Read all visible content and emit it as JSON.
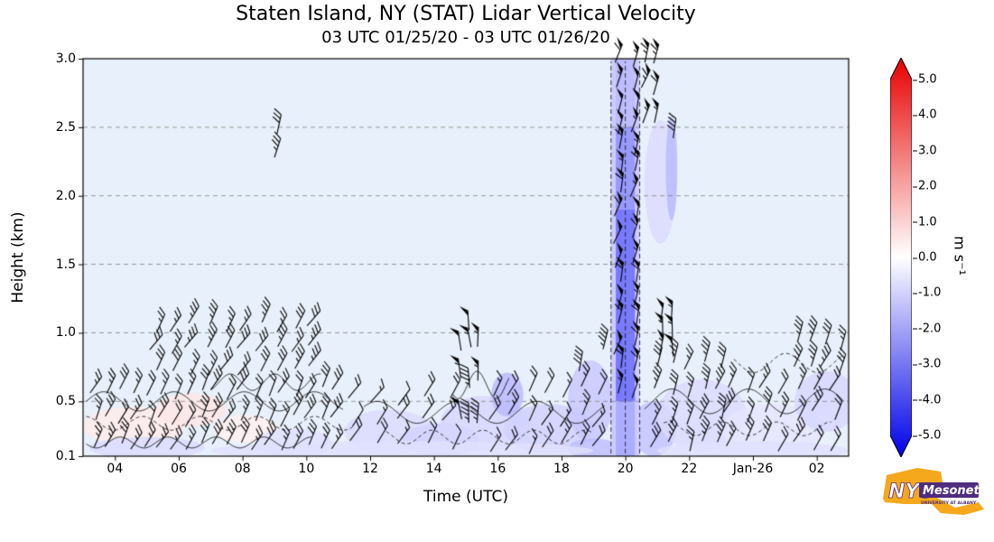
{
  "header": {
    "title": "Staten Island, NY (STAT) Lidar Vertical Velocity",
    "subtitle": "03 UTC 01/25/20 - 03 UTC 01/26/20"
  },
  "axes": {
    "xlabel": "Time (UTC)",
    "ylabel": "Height (km)"
  },
  "colorbar": {
    "label": "m s⁻¹",
    "tick_labels": [
      "5.0",
      "4.0",
      "3.0",
      "2.0",
      "1.0",
      "0.0",
      "-1.0",
      "-2.0",
      "-3.0",
      "-4.0",
      "-5.0"
    ],
    "top_arrow_color": "#e80000",
    "bottom_arrow_color": "#0000e8"
  },
  "logo": {
    "org": "NYS",
    "name": "Mesonet",
    "tagline": "UNIVERSITY AT ALBANY",
    "state_color": "#F5A81C",
    "accent_color": "#4F2D7F"
  },
  "chart_data": {
    "type": "heatmap",
    "title": "Staten Island, NY (STAT) Lidar Vertical Velocity",
    "subtitle": "03 UTC 01/25/20 - 03 UTC 01/26/20",
    "xlabel": "Time (UTC)",
    "ylabel": "Height (km)",
    "units": "m s-1",
    "xlim": [
      3,
      27
    ],
    "ylim": [
      0.1,
      3.0
    ],
    "x_tick_hours": [
      4,
      6,
      8,
      10,
      12,
      14,
      16,
      18,
      20,
      22,
      24,
      26
    ],
    "x_tick_labels": [
      "04",
      "06",
      "08",
      "10",
      "12",
      "14",
      "16",
      "18",
      "20",
      "22",
      "Jan-26",
      "02"
    ],
    "y_tick_values": [
      0.1,
      0.5,
      1.0,
      1.5,
      2.0,
      2.5,
      3.0
    ],
    "y_tick_labels": [
      "0.1",
      "0.5",
      "1.0",
      "1.5",
      "2.0",
      "2.5",
      "3.0"
    ],
    "grid_heights": [
      0.5,
      1.0,
      1.5,
      2.0,
      2.5
    ],
    "grid_on": true,
    "legend": "colorbar right, -5.0 to 5.0 m s-1, blue negative (downward), red positive (upward)",
    "background_value": -0.2,
    "background_color": "#e8f1fb",
    "colorbar": {
      "vmin": -5.0,
      "vmax": 5.0,
      "ticks": [
        5,
        4,
        3,
        2,
        1,
        0,
        -1,
        -2,
        -3,
        -4,
        -5
      ]
    },
    "patches": [
      {
        "t": 4.6,
        "h": 0.32,
        "rt": 1.6,
        "rh": 0.14,
        "v": 0.4
      },
      {
        "t": 6.4,
        "h": 0.44,
        "rt": 1.1,
        "rh": 0.12,
        "v": 0.5
      },
      {
        "t": 8.1,
        "h": 0.3,
        "rt": 1.0,
        "rh": 0.1,
        "v": 0.3
      },
      {
        "t": 5.0,
        "h": 0.16,
        "rt": 1.8,
        "rh": 0.08,
        "v": -0.7
      },
      {
        "t": 9.6,
        "h": 0.2,
        "rt": 1.2,
        "rh": 0.1,
        "v": -0.6
      },
      {
        "t": 12.6,
        "h": 0.28,
        "rt": 1.4,
        "rh": 0.16,
        "v": -0.7
      },
      {
        "t": 14.2,
        "h": 0.22,
        "rt": 1.2,
        "rh": 0.12,
        "v": -0.9
      },
      {
        "t": 15.6,
        "h": 0.34,
        "rt": 1.4,
        "rh": 0.2,
        "v": -0.8
      },
      {
        "t": 16.3,
        "h": 0.55,
        "rt": 0.5,
        "rh": 0.16,
        "v": -1.4
      },
      {
        "t": 17.6,
        "h": 0.3,
        "rt": 1.4,
        "rh": 0.18,
        "v": -0.9
      },
      {
        "t": 18.9,
        "h": 0.5,
        "rt": 0.7,
        "rh": 0.3,
        "v": -1.1
      },
      {
        "t": 19.0,
        "h": 0.15,
        "rt": 0.8,
        "rh": 0.08,
        "v": -1.3
      },
      {
        "t": 20.9,
        "h": 0.3,
        "rt": 0.7,
        "rh": 0.2,
        "v": -1.2
      },
      {
        "t": 21.1,
        "h": 2.1,
        "rt": 0.5,
        "rh": 0.45,
        "v": -0.7
      },
      {
        "t": 21.45,
        "h": 2.2,
        "rt": 0.18,
        "rh": 0.38,
        "v": -1.4
      },
      {
        "t": 22.4,
        "h": 0.4,
        "rt": 1.4,
        "rh": 0.26,
        "v": -0.7
      },
      {
        "t": 24.6,
        "h": 0.3,
        "rt": 1.6,
        "rh": 0.18,
        "v": -0.5
      },
      {
        "t": 26.3,
        "h": 0.5,
        "rt": 1.0,
        "rh": 0.22,
        "v": -0.8
      },
      {
        "t": 13.0,
        "h": 0.14,
        "rt": 6.0,
        "rh": 0.07,
        "v": -0.6
      },
      {
        "t": 24.0,
        "h": 0.14,
        "rt": 3.0,
        "rh": 0.07,
        "v": -0.6
      }
    ],
    "downdraft_column": {
      "t0": 19.55,
      "t1": 20.45,
      "halo_v": -1.0,
      "core_t0": 19.7,
      "core_t1": 20.3,
      "segments": [
        {
          "h0": 0.1,
          "h1": 0.5,
          "v": -1.6
        },
        {
          "h0": 0.5,
          "h1": 1.9,
          "v": -2.6
        },
        {
          "h0": 1.9,
          "h1": 2.5,
          "v": -2.0
        },
        {
          "h0": 2.5,
          "h1": 3.0,
          "v": -1.3
        }
      ]
    },
    "contours": [
      {
        "t0": 3.1,
        "t1": 11.2,
        "h": 0.5,
        "amp": 0.07,
        "per": 2.2,
        "dash": false
      },
      {
        "t0": 3.1,
        "t1": 11.5,
        "h": 0.34,
        "amp": 0.05,
        "per": 1.8,
        "dash": true
      },
      {
        "t0": 3.1,
        "t1": 10.2,
        "h": 0.2,
        "amp": 0.04,
        "per": 1.5,
        "dash": false
      },
      {
        "t0": 7.0,
        "t1": 10.5,
        "h": 0.64,
        "amp": 0.06,
        "per": 1.4,
        "dash": false
      },
      {
        "t0": 11.8,
        "t1": 19.4,
        "h": 0.42,
        "amp": 0.08,
        "per": 2.5,
        "dash": false
      },
      {
        "t0": 12.5,
        "t1": 19.0,
        "h": 0.24,
        "amp": 0.05,
        "per": 1.6,
        "dash": true
      },
      {
        "t0": 14.6,
        "t1": 16.4,
        "h": 0.62,
        "amp": 0.1,
        "per": 1.2,
        "dash": false
      },
      {
        "t0": 20.6,
        "t1": 26.9,
        "h": 0.5,
        "amp": 0.09,
        "per": 2.4,
        "dash": false
      },
      {
        "t0": 21.2,
        "t1": 26.5,
        "h": 0.3,
        "amp": 0.05,
        "per": 1.7,
        "dash": true
      },
      {
        "t0": 23.4,
        "t1": 26.9,
        "h": 0.78,
        "amp": 0.07,
        "per": 2.0,
        "dash": true
      }
    ],
    "barb_clusters": [
      {
        "t0": 3.3,
        "t1": 11.0,
        "dt": 0.42,
        "h0": 0.16,
        "h1": 0.56,
        "dh": 0.2,
        "dir_deg": 62,
        "spd_kt": 25
      },
      {
        "t0": 5.2,
        "t1": 10.6,
        "dt": 0.55,
        "h0": 0.72,
        "h1": 1.04,
        "dh": 0.16,
        "dir_deg": 58,
        "spd_kt": 30
      },
      {
        "t0": 11.4,
        "t1": 14.4,
        "dt": 0.75,
        "h0": 0.18,
        "h1": 0.5,
        "dh": 0.16,
        "dir_deg": 55,
        "spd_kt": 15
      },
      {
        "t0": 14.8,
        "t1": 15.4,
        "dt": 0.3,
        "h0": 0.38,
        "h1": 0.86,
        "dh": 0.24,
        "dir_deg": 92,
        "spd_kt": 50
      },
      {
        "t0": 15.8,
        "t1": 19.3,
        "dt": 0.55,
        "h0": 0.16,
        "h1": 0.56,
        "dh": 0.2,
        "dir_deg": 60,
        "spd_kt": 20
      },
      {
        "t0": 19.75,
        "t1": 20.25,
        "dt": 0.5,
        "h0": 0.55,
        "h1": 2.95,
        "dh": 0.16,
        "dir_deg": 74,
        "spd_kt": 55
      },
      {
        "t0": 20.55,
        "t1": 20.85,
        "dt": 0.3,
        "h0": 2.55,
        "h1": 2.95,
        "dh": 0.2,
        "dir_deg": 70,
        "spd_kt": 60
      },
      {
        "t0": 21.15,
        "t1": 21.45,
        "dt": 0.3,
        "h0": 0.85,
        "h1": 1.1,
        "dh": 0.12,
        "dir_deg": 88,
        "spd_kt": 55
      },
      {
        "t0": 20.9,
        "t1": 22.9,
        "dt": 0.5,
        "h0": 0.18,
        "h1": 0.75,
        "dh": 0.19,
        "dir_deg": 68,
        "spd_kt": 30
      },
      {
        "t0": 23.2,
        "t1": 26.7,
        "dt": 0.55,
        "h0": 0.18,
        "h1": 0.6,
        "dh": 0.21,
        "dir_deg": 64,
        "spd_kt": 25
      },
      {
        "t0": 25.3,
        "t1": 26.7,
        "dt": 0.45,
        "h0": 0.72,
        "h1": 0.92,
        "dh": 0.2,
        "dir_deg": 66,
        "spd_kt": 30
      }
    ],
    "barbs": [
      {
        "t": 9.0,
        "h": 2.28,
        "dir_deg": 72,
        "spd_kt": 35
      },
      {
        "t": 9.08,
        "h": 2.45,
        "dir_deg": 78,
        "spd_kt": 30
      },
      {
        "t": 15.1,
        "h": 1.02,
        "dir_deg": 94,
        "spd_kt": 50
      },
      {
        "t": 18.55,
        "h": 0.72,
        "dir_deg": 80,
        "spd_kt": 40
      },
      {
        "t": 19.3,
        "h": 0.88,
        "dir_deg": 76,
        "spd_kt": 45
      },
      {
        "t": 21.5,
        "h": 2.42,
        "dir_deg": 82,
        "spd_kt": 40
      }
    ]
  }
}
